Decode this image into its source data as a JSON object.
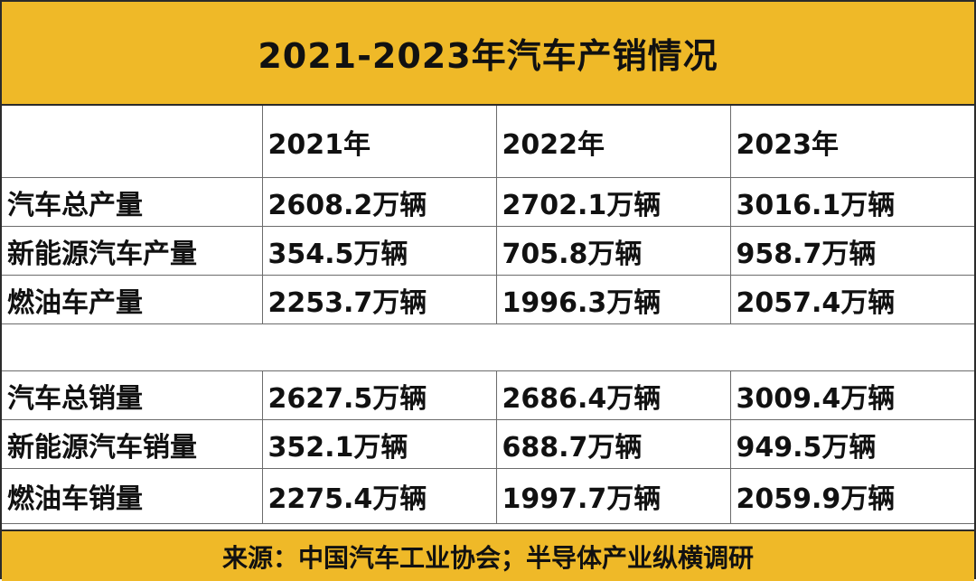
{
  "title": "2021-2023年汽车产销情况",
  "columns": [
    "",
    "2021年",
    "2022年",
    "2023年"
  ],
  "production_rows": [
    {
      "label": "汽车总产量",
      "values": [
        "2608.2万辆",
        "2702.1万辆",
        "3016.1万辆"
      ]
    },
    {
      "label": "新能源汽车产量",
      "values": [
        "354.5万辆",
        "705.8万辆",
        "958.7万辆"
      ]
    },
    {
      "label": "燃油车产量",
      "values": [
        "2253.7万辆",
        "1996.3万辆",
        "2057.4万辆"
      ]
    }
  ],
  "sales_rows": [
    {
      "label": "汽车总销量",
      "values": [
        "2627.5万辆",
        "2686.4万辆",
        "3009.4万辆"
      ]
    },
    {
      "label": "新能源汽车销量",
      "values": [
        "352.1万辆",
        "688.7万辆",
        "949.5万辆"
      ]
    },
    {
      "label": "燃油车销量",
      "values": [
        "2275.4万辆",
        "1997.7万辆",
        "2059.9万辆"
      ]
    }
  ],
  "footer": "来源：中国汽车工业协会；半导体产业纵横调研",
  "colors": {
    "header_bg": "#efb928",
    "border": "#2b2b2b",
    "text": "#111111"
  }
}
